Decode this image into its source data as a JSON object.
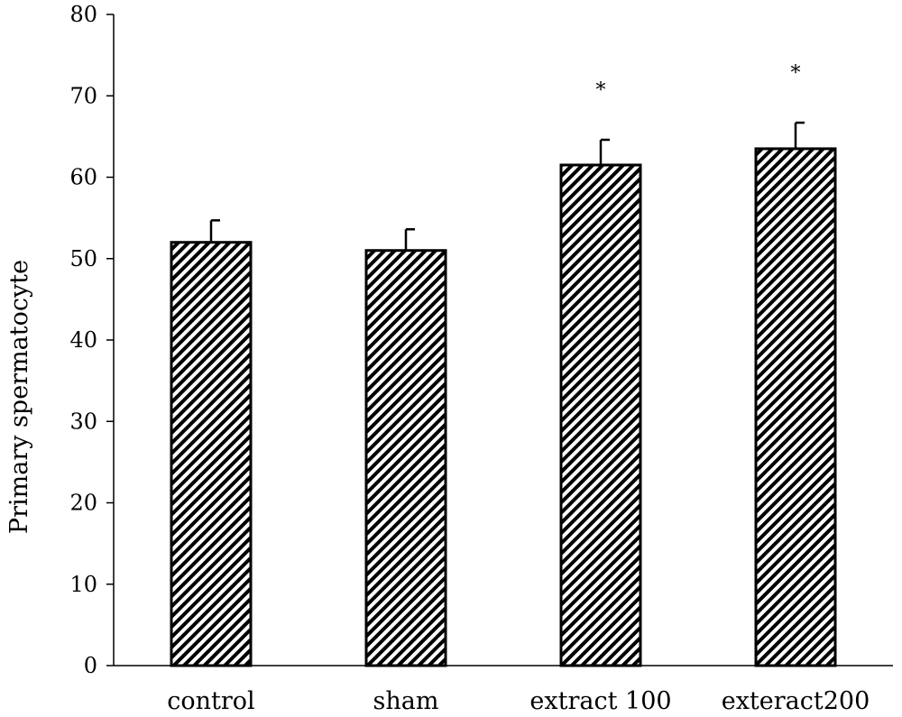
{
  "chart_data": {
    "type": "bar",
    "title": "",
    "xlabel": "",
    "ylabel": "Primary spermatocyte",
    "categories": [
      "control",
      "sham",
      "extract 100",
      "exteract200"
    ],
    "values": [
      52,
      51,
      61.5,
      63.5
    ],
    "errors": [
      2.7,
      2.6,
      3.1,
      3.2
    ],
    "annotations": [
      "",
      "",
      "*",
      "*"
    ],
    "ylim": [
      0,
      80
    ],
    "yticks": [
      0,
      10,
      20,
      30,
      40,
      50,
      60,
      70,
      80
    ],
    "grid": false,
    "legend": "none",
    "bar_fill": "diagonal-hatch",
    "colors": {
      "bar_stroke": "#000000",
      "hatch": "#000000",
      "background": "#ffffff"
    }
  }
}
